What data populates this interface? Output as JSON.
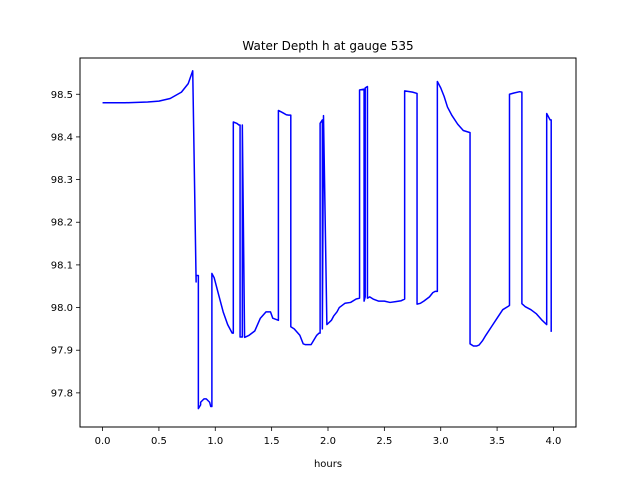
{
  "chart_data": {
    "type": "line",
    "title": "Water Depth h at gauge 535",
    "xlabel": "hours",
    "ylabel": "",
    "xlim": [
      -0.2,
      4.2
    ],
    "ylim": [
      97.72,
      98.585
    ],
    "grid": false,
    "legend": "none",
    "x_ticks": [
      0.0,
      0.5,
      1.0,
      1.5,
      2.0,
      2.5,
      3.0,
      3.5,
      4.0
    ],
    "x_tick_labels": [
      "0.0",
      "0.5",
      "1.0",
      "1.5",
      "2.0",
      "2.5",
      "3.0",
      "3.5",
      "4.0"
    ],
    "y_ticks": [
      97.8,
      97.9,
      98.0,
      98.1,
      98.2,
      98.3,
      98.4,
      98.5
    ],
    "y_tick_labels": [
      "97.8",
      "97.9",
      "98.0",
      "98.1",
      "98.2",
      "98.3",
      "98.4",
      "98.5"
    ],
    "series": [
      {
        "color": "#0000ff",
        "x": [
          0.0,
          0.2,
          0.4,
          0.5,
          0.6,
          0.7,
          0.76,
          0.8,
          0.83,
          0.83,
          0.85,
          0.85,
          0.87,
          0.87,
          0.9,
          0.92,
          0.95,
          0.96,
          0.97,
          0.97,
          0.99,
          1.03,
          1.07,
          1.11,
          1.15,
          1.16,
          1.16,
          1.19,
          1.21,
          1.22,
          1.22,
          1.24,
          1.24,
          1.26,
          1.3,
          1.35,
          1.4,
          1.45,
          1.49,
          1.51,
          1.56,
          1.56,
          1.59,
          1.61,
          1.63,
          1.65,
          1.67,
          1.67,
          1.7,
          1.75,
          1.78,
          1.8,
          1.85,
          1.9,
          1.92,
          1.93,
          1.93,
          1.95,
          1.95,
          1.96,
          1.96,
          1.99,
          2.03,
          2.05,
          2.08,
          2.1,
          2.15,
          2.2,
          2.25,
          2.28,
          2.28,
          2.32,
          2.32,
          2.33,
          2.33,
          2.35,
          2.35,
          2.37,
          2.4,
          2.45,
          2.5,
          2.55,
          2.6,
          2.65,
          2.68,
          2.68,
          2.75,
          2.79,
          2.79,
          2.82,
          2.85,
          2.9,
          2.93,
          2.95,
          2.97,
          2.97,
          3.0,
          3.03,
          3.06,
          3.1,
          3.15,
          3.2,
          3.26,
          3.26,
          3.29,
          3.32,
          3.34,
          3.37,
          3.4,
          3.45,
          3.5,
          3.55,
          3.6,
          3.61,
          3.61,
          3.65,
          3.7,
          3.72,
          3.72,
          3.75,
          3.8,
          3.85,
          3.9,
          3.94,
          3.94,
          3.94,
          3.97,
          3.98,
          3.98
        ],
        "y": [
          98.48,
          98.48,
          98.482,
          98.484,
          98.49,
          98.505,
          98.525,
          98.555,
          98.06,
          98.075,
          98.075,
          97.763,
          97.772,
          97.778,
          97.786,
          97.786,
          97.778,
          97.768,
          97.768,
          98.08,
          98.07,
          98.03,
          97.99,
          97.96,
          97.94,
          97.94,
          98.435,
          98.432,
          98.428,
          98.428,
          97.931,
          97.931,
          98.428,
          97.93,
          97.935,
          97.945,
          97.975,
          97.99,
          97.99,
          97.975,
          97.97,
          98.462,
          98.458,
          98.455,
          98.452,
          98.451,
          98.451,
          97.955,
          97.95,
          97.935,
          97.915,
          97.913,
          97.913,
          97.935,
          97.94,
          97.94,
          98.432,
          98.44,
          97.95,
          98.44,
          98.45,
          97.96,
          97.97,
          97.98,
          97.99,
          98.0,
          98.01,
          98.012,
          98.02,
          98.022,
          98.51,
          98.512,
          98.015,
          98.025,
          98.515,
          98.518,
          98.022,
          98.025,
          98.02,
          98.015,
          98.015,
          98.012,
          98.014,
          98.016,
          98.02,
          98.508,
          98.505,
          98.502,
          98.008,
          98.01,
          98.015,
          98.025,
          98.035,
          98.038,
          98.038,
          98.53,
          98.515,
          98.495,
          98.47,
          98.45,
          98.43,
          98.415,
          98.41,
          97.915,
          97.91,
          97.91,
          97.912,
          97.922,
          97.935,
          97.955,
          97.975,
          97.995,
          98.003,
          98.005,
          98.5,
          98.503,
          98.506,
          98.505,
          98.009,
          98.002,
          97.995,
          97.985,
          97.97,
          97.96,
          97.96,
          98.455,
          98.44,
          98.44,
          97.943
        ]
      }
    ]
  }
}
